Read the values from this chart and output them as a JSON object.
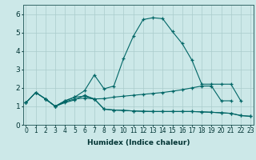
{
  "xlabel": "Humidex (Indice chaleur)",
  "bg_color": "#cce8e8",
  "grid_color": "#aacccc",
  "line_color": "#006666",
  "ylim": [
    0,
    6.5
  ],
  "xlim": [
    -0.3,
    23.3
  ],
  "s1": [
    1.2,
    1.75,
    1.4,
    1.0,
    1.3,
    1.5,
    1.85,
    2.7,
    1.95,
    2.1,
    3.6,
    4.8,
    5.7,
    5.8,
    5.75,
    5.05,
    4.4,
    3.5,
    2.2,
    2.2,
    2.2,
    2.2,
    1.3,
    null
  ],
  "s2": [
    1.2,
    1.75,
    1.4,
    1.0,
    1.3,
    1.5,
    1.55,
    1.4,
    1.42,
    1.5,
    1.55,
    1.6,
    1.65,
    1.7,
    1.75,
    1.82,
    1.9,
    2.0,
    2.1,
    2.1,
    1.3,
    1.3,
    null,
    null
  ],
  "s3": [
    1.2,
    null,
    1.4,
    1.0,
    1.25,
    1.4,
    1.45,
    1.4,
    0.85,
    0.8,
    0.78,
    0.75,
    0.73,
    0.72,
    0.72,
    0.72,
    0.72,
    0.72,
    0.7,
    0.68,
    0.65,
    0.62,
    0.5,
    0.46
  ],
  "s4": [
    1.2,
    1.75,
    1.4,
    1.0,
    1.2,
    1.35,
    1.6,
    1.4,
    0.85,
    0.8,
    0.78,
    0.75,
    0.73,
    0.72,
    0.72,
    0.72,
    0.72,
    0.72,
    0.7,
    0.68,
    0.65,
    0.62,
    0.5,
    0.46
  ]
}
